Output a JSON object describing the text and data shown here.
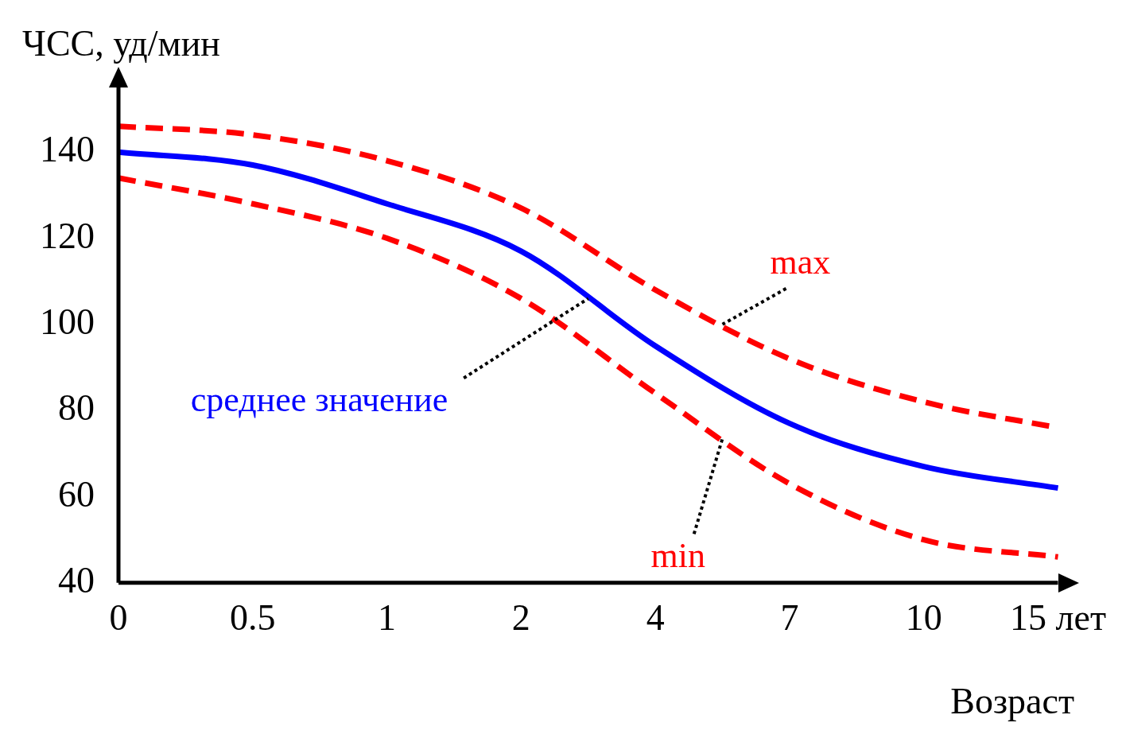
{
  "chart_data": {
    "type": "line",
    "ylabel": "ЧСС, уд/мин",
    "xlabel": "Возраст",
    "categories": [
      "0",
      "0.5",
      "1",
      "2",
      "4",
      "7",
      "10",
      "15 лет"
    ],
    "ylim": [
      40,
      155
    ],
    "yticks": [
      40,
      60,
      80,
      100,
      120,
      140
    ],
    "grid": false,
    "legend": false,
    "marker": "none",
    "series": [
      {
        "name": "max",
        "color": "#ff0000",
        "line_style": "dashed",
        "values": [
          146,
          144,
          138,
          127,
          108,
          92,
          82,
          76
        ]
      },
      {
        "name": "среднее значение",
        "color": "#0000ff",
        "line_style": "solid",
        "values": [
          140,
          137,
          128,
          117,
          95,
          77,
          67,
          62
        ]
      },
      {
        "name": "min",
        "color": "#ff0000",
        "line_style": "dashed",
        "values": [
          134,
          128,
          120,
          106,
          84,
          63,
          50,
          46
        ]
      }
    ]
  }
}
